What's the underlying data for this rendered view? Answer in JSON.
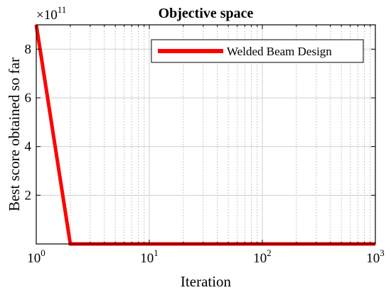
{
  "chart_data": {
    "type": "line",
    "title": "Objective space",
    "xlabel": "Iteration",
    "ylabel": "Best score obtained so far",
    "x_scale": "log",
    "xlim": [
      1,
      1000
    ],
    "ylim": [
      0,
      9
    ],
    "y_multiplier_base": "×10",
    "y_multiplier_exponent": "11",
    "x_ticks": [
      {
        "base": "10",
        "exp": "0",
        "value": 1
      },
      {
        "base": "10",
        "exp": "1",
        "value": 10
      },
      {
        "base": "10",
        "exp": "2",
        "value": 100
      },
      {
        "base": "10",
        "exp": "3",
        "value": 1000
      }
    ],
    "y_ticks": [
      {
        "label": "2",
        "value": 2
      },
      {
        "label": "4",
        "value": 4
      },
      {
        "label": "6",
        "value": 6
      },
      {
        "label": "8",
        "value": 8
      }
    ],
    "grid": true,
    "legend_position": "top-right",
    "series": [
      {
        "name": "Welded Beam Design",
        "color": "#ff0000",
        "x": [
          1,
          2,
          3,
          5,
          10,
          50,
          100,
          500,
          1000
        ],
        "y": [
          9,
          0.001,
          0.001,
          0.001,
          0.001,
          0.001,
          0.001,
          0.001,
          0.001
        ]
      }
    ]
  }
}
